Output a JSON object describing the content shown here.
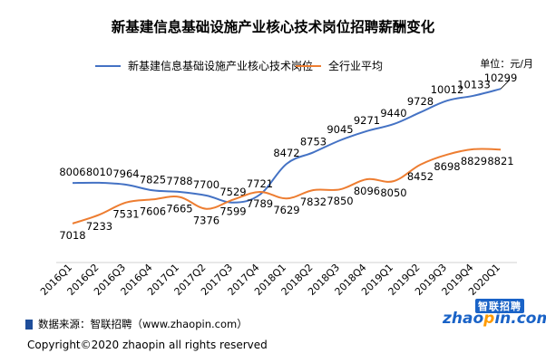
{
  "title": "新基建信息基础设施产业核心技术岗位招聘薪酬变化",
  "unit_label": "单位：元/月",
  "source_text": "数据来源：智联招聘（www.zhaopin.com）",
  "copyright": "Copyright©2020 zhaopin all rights reserved",
  "logo": {
    "badge": "智联招聘",
    "prefix": "zhao",
    "mark": "p",
    "suffix": "in.com"
  },
  "colors": {
    "series1": "#4472c4",
    "series2": "#ed7d31"
  },
  "chart_data": {
    "type": "line",
    "title": "新基建信息基础设施产业核心技术岗位招聘薪酬变化",
    "categories": [
      "2016Q1",
      "2016Q2",
      "2016Q3",
      "2016Q4",
      "2017Q1",
      "2017Q2",
      "2017Q3",
      "2017Q4",
      "2018Q1",
      "2018Q2",
      "2018Q3",
      "2018Q4",
      "2019Q1",
      "2019Q2",
      "2019Q3",
      "2019Q4",
      "2020Q1"
    ],
    "series": [
      {
        "name": "新基建信息基础设施产业核心技术岗位",
        "values": [
          8006,
          8010,
          7964,
          7825,
          7788,
          7700,
          7529,
          7721,
          8472,
          8753,
          9045,
          9271,
          9440,
          9728,
          10012,
          10133,
          10299
        ]
      },
      {
        "name": "全行业平均",
        "values": [
          7018,
          7233,
          7531,
          7606,
          7665,
          7376,
          7599,
          7789,
          7629,
          7832,
          7850,
          8096,
          8050,
          8452,
          8698,
          8829,
          8821
        ]
      }
    ],
    "ylim": [
      6200,
      10700
    ],
    "grid": false,
    "legend": "top-left"
  }
}
